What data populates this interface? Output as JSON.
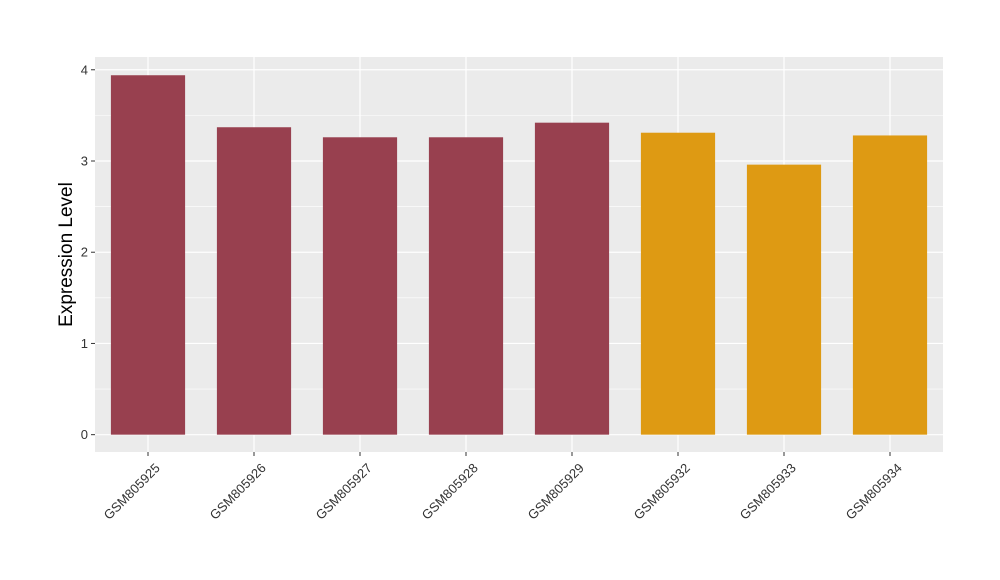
{
  "chart_data": {
    "type": "bar",
    "title": "",
    "xlabel": "",
    "ylabel": "Expression Level",
    "categories": [
      "GSM805925",
      "GSM805926",
      "GSM805927",
      "GSM805928",
      "GSM805929",
      "GSM805932",
      "GSM805933",
      "GSM805934"
    ],
    "values": [
      3.94,
      3.37,
      3.26,
      3.26,
      3.42,
      3.31,
      2.96,
      3.28
    ],
    "groups": [
      "a",
      "a",
      "a",
      "a",
      "a",
      "b",
      "b",
      "b"
    ],
    "group_colors": {
      "a": "#98404F",
      "b": "#DE9A13"
    },
    "ylim": [
      -0.19,
      4.14
    ],
    "yticks": [
      0,
      1,
      2,
      3,
      4
    ],
    "ytick_labels": [
      "0",
      "1",
      "2",
      "3",
      "4"
    ],
    "grid": true,
    "legend": "none",
    "panel_background": "#EBEBEB",
    "grid_color": "#FFFFFF"
  }
}
